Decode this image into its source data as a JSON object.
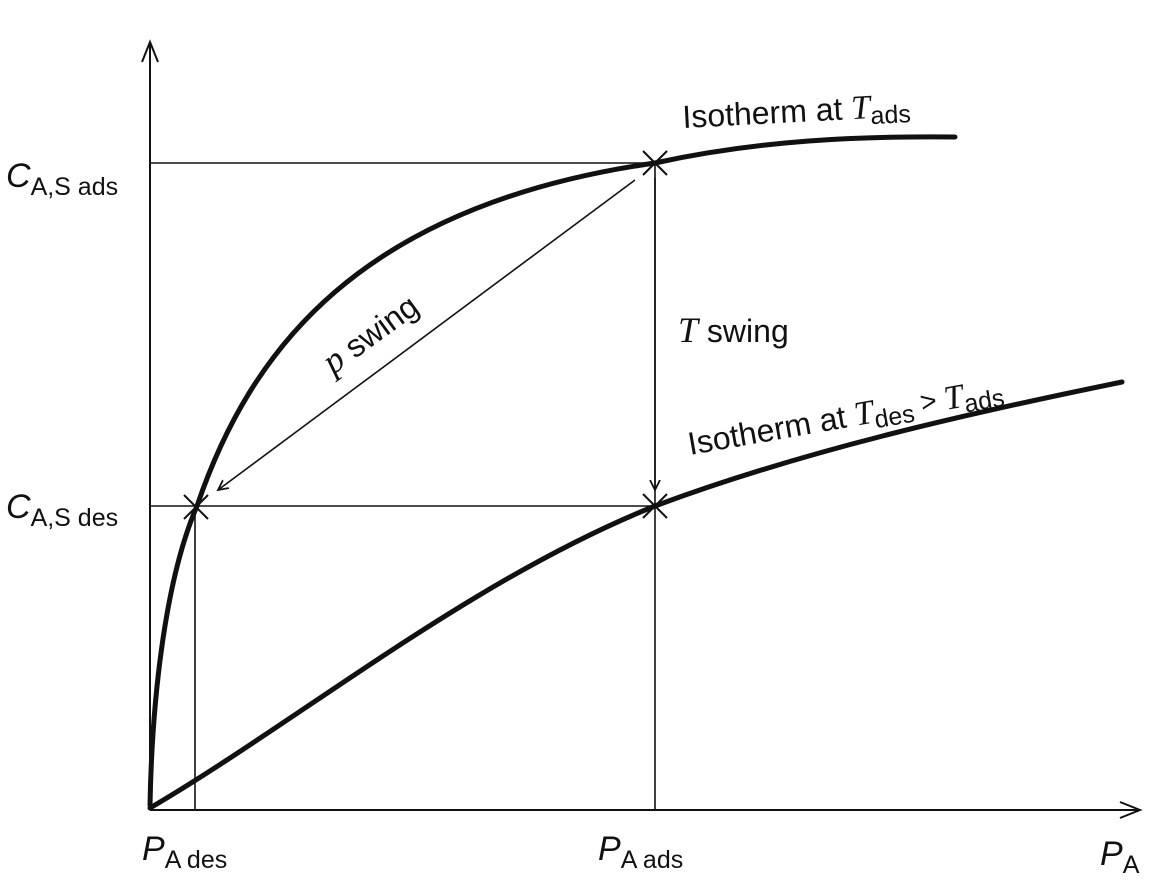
{
  "axes": {
    "x_label": {
      "main": "P",
      "sub": "A"
    },
    "y_ticks": [
      {
        "main": "C",
        "sub": "A,S ads"
      },
      {
        "main": "C",
        "sub": "A,S des"
      }
    ],
    "x_ticks": [
      {
        "main": "P",
        "sub": "A des"
      },
      {
        "main": "P",
        "sub": "A ads"
      }
    ]
  },
  "curves": {
    "ads": {
      "prefix": "Isotherm at ",
      "T": "T",
      "sub": "ads"
    },
    "des": {
      "prefix": "Isotherm at ",
      "T1": "T",
      "sub1": "des",
      "gt": " > ",
      "T2": "T",
      "sub2": "ads"
    }
  },
  "annotations": {
    "p_swing": {
      "symbol": "p",
      "text": " swing"
    },
    "t_swing": {
      "symbol": "T",
      "text": " swing"
    }
  }
}
